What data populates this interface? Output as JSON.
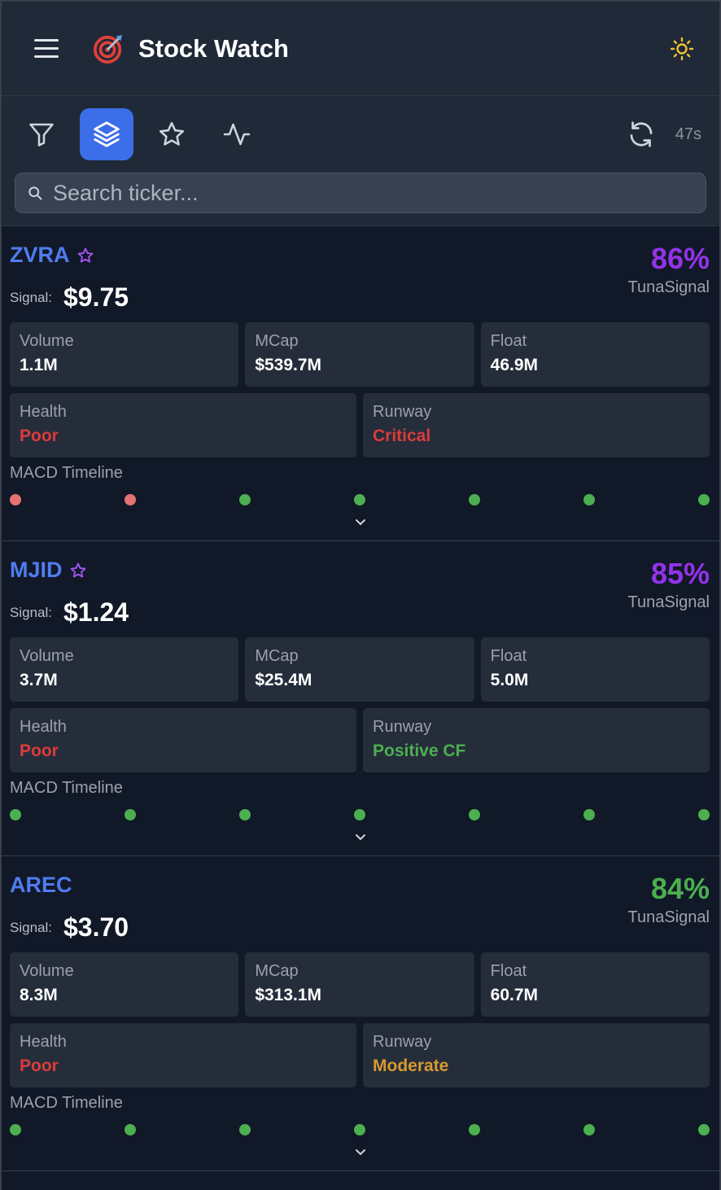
{
  "header": {
    "title": "Stock Watch",
    "menu_icon": "hamburger-icon",
    "logo_icon": "target-icon",
    "theme_icon": "sun-icon"
  },
  "toolbar": {
    "tools": [
      {
        "name": "filter-icon",
        "active": false
      },
      {
        "name": "layers-icon",
        "active": true
      },
      {
        "name": "star-icon",
        "active": false
      },
      {
        "name": "activity-icon",
        "active": false
      }
    ],
    "refresh_icon": "refresh-icon",
    "timer": "47s"
  },
  "search": {
    "placeholder": "Search ticker...",
    "value": ""
  },
  "colors": {
    "accent": "#3b6ee8",
    "ticker": "#4f7cf0",
    "purple": "#9333ea",
    "green": "#4caf50",
    "red": "#dc3b3b",
    "amber": "#d89a2e",
    "dot_red": "#e57373",
    "dot_green": "#4caf50"
  },
  "stocks": [
    {
      "ticker": "ZVRA",
      "favorite_icon": true,
      "signal_label": "Signal:",
      "price": "$9.75",
      "score": "86%",
      "score_color": "#9333ea",
      "score_label": "TunaSignal",
      "volume_label": "Volume",
      "volume": "1.1M",
      "mcap_label": "MCap",
      "mcap": "$539.7M",
      "float_label": "Float",
      "float": "46.9M",
      "health_label": "Health",
      "health": "Poor",
      "health_status": "red",
      "runway_label": "Runway",
      "runway": "Critical",
      "runway_status": "red",
      "macd_label": "MACD Timeline",
      "macd": [
        "red",
        "red",
        "green",
        "green",
        "green",
        "green",
        "green"
      ]
    },
    {
      "ticker": "MJID",
      "favorite_icon": true,
      "signal_label": "Signal:",
      "price": "$1.24",
      "score": "85%",
      "score_color": "#9333ea",
      "score_label": "TunaSignal",
      "volume_label": "Volume",
      "volume": "3.7M",
      "mcap_label": "MCap",
      "mcap": "$25.4M",
      "float_label": "Float",
      "float": "5.0M",
      "health_label": "Health",
      "health": "Poor",
      "health_status": "red",
      "runway_label": "Runway",
      "runway": "Positive CF",
      "runway_status": "green",
      "macd_label": "MACD Timeline",
      "macd": [
        "green",
        "green",
        "green",
        "green",
        "green",
        "green",
        "green"
      ]
    },
    {
      "ticker": "AREC",
      "favorite_icon": false,
      "signal_label": "Signal:",
      "price": "$3.70",
      "score": "84%",
      "score_color": "#4caf50",
      "score_label": "TunaSignal",
      "volume_label": "Volume",
      "volume": "8.3M",
      "mcap_label": "MCap",
      "mcap": "$313.1M",
      "float_label": "Float",
      "float": "60.7M",
      "health_label": "Health",
      "health": "Poor",
      "health_status": "red",
      "runway_label": "Runway",
      "runway": "Moderate",
      "runway_status": "amber",
      "macd_label": "MACD Timeline",
      "macd": [
        "green",
        "green",
        "green",
        "green",
        "green",
        "green",
        "green"
      ]
    }
  ]
}
